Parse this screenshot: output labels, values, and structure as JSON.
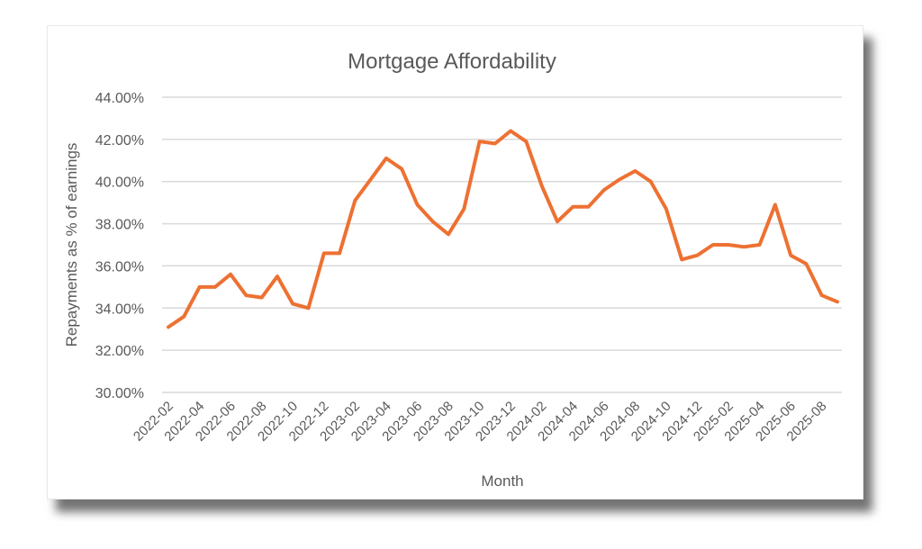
{
  "chart_data": {
    "type": "line",
    "title": "Mortgage Affordability",
    "xlabel": "Month",
    "ylabel": "Repayments as % of earnings",
    "ylim": [
      30,
      44
    ],
    "yticks": [
      "30.00%",
      "32.00%",
      "34.00%",
      "36.00%",
      "38.00%",
      "40.00%",
      "42.00%",
      "44.00%"
    ],
    "xtick_labels": [
      "2022-02",
      "2022-04",
      "2022-06",
      "2022-08",
      "2022-10",
      "2022-12",
      "2023-02",
      "2023-04",
      "2023-06",
      "2023-08",
      "2023-10",
      "2023-12",
      "2024-02",
      "2024-04",
      "2024-06",
      "2024-08",
      "2024-10",
      "2024-12",
      "2025-02",
      "2025-04",
      "2025-06",
      "2025-08"
    ],
    "grid": true,
    "series": [
      {
        "name": "Repayments as % of earnings",
        "color": "#ed7132",
        "x": [
          "2022-02",
          "2022-03",
          "2022-04",
          "2022-05",
          "2022-06",
          "2022-07",
          "2022-08",
          "2022-09",
          "2022-10",
          "2022-11",
          "2022-12",
          "2023-01",
          "2023-02",
          "2023-03",
          "2023-04",
          "2023-05",
          "2023-06",
          "2023-07",
          "2023-08",
          "2023-09",
          "2023-10",
          "2023-11",
          "2023-12",
          "2024-01",
          "2024-02",
          "2024-03",
          "2024-04",
          "2024-05",
          "2024-06",
          "2024-07",
          "2024-08",
          "2024-09",
          "2024-10",
          "2024-11",
          "2024-12",
          "2025-01",
          "2025-02",
          "2025-03",
          "2025-04",
          "2025-05",
          "2025-06",
          "2025-07",
          "2025-08",
          "2025-09"
        ],
        "values": [
          33.1,
          33.6,
          35.0,
          35.0,
          35.6,
          34.6,
          34.5,
          35.5,
          34.2,
          34.0,
          36.6,
          36.6,
          39.1,
          40.1,
          41.1,
          40.6,
          38.9,
          38.1,
          37.5,
          38.7,
          41.9,
          41.8,
          42.4,
          41.9,
          39.8,
          38.1,
          38.8,
          38.8,
          39.6,
          40.1,
          40.5,
          40.0,
          38.7,
          36.3,
          36.5,
          37.0,
          37.0,
          36.9,
          37.0,
          38.9,
          36.5,
          36.1,
          34.6,
          34.3
        ]
      }
    ]
  }
}
